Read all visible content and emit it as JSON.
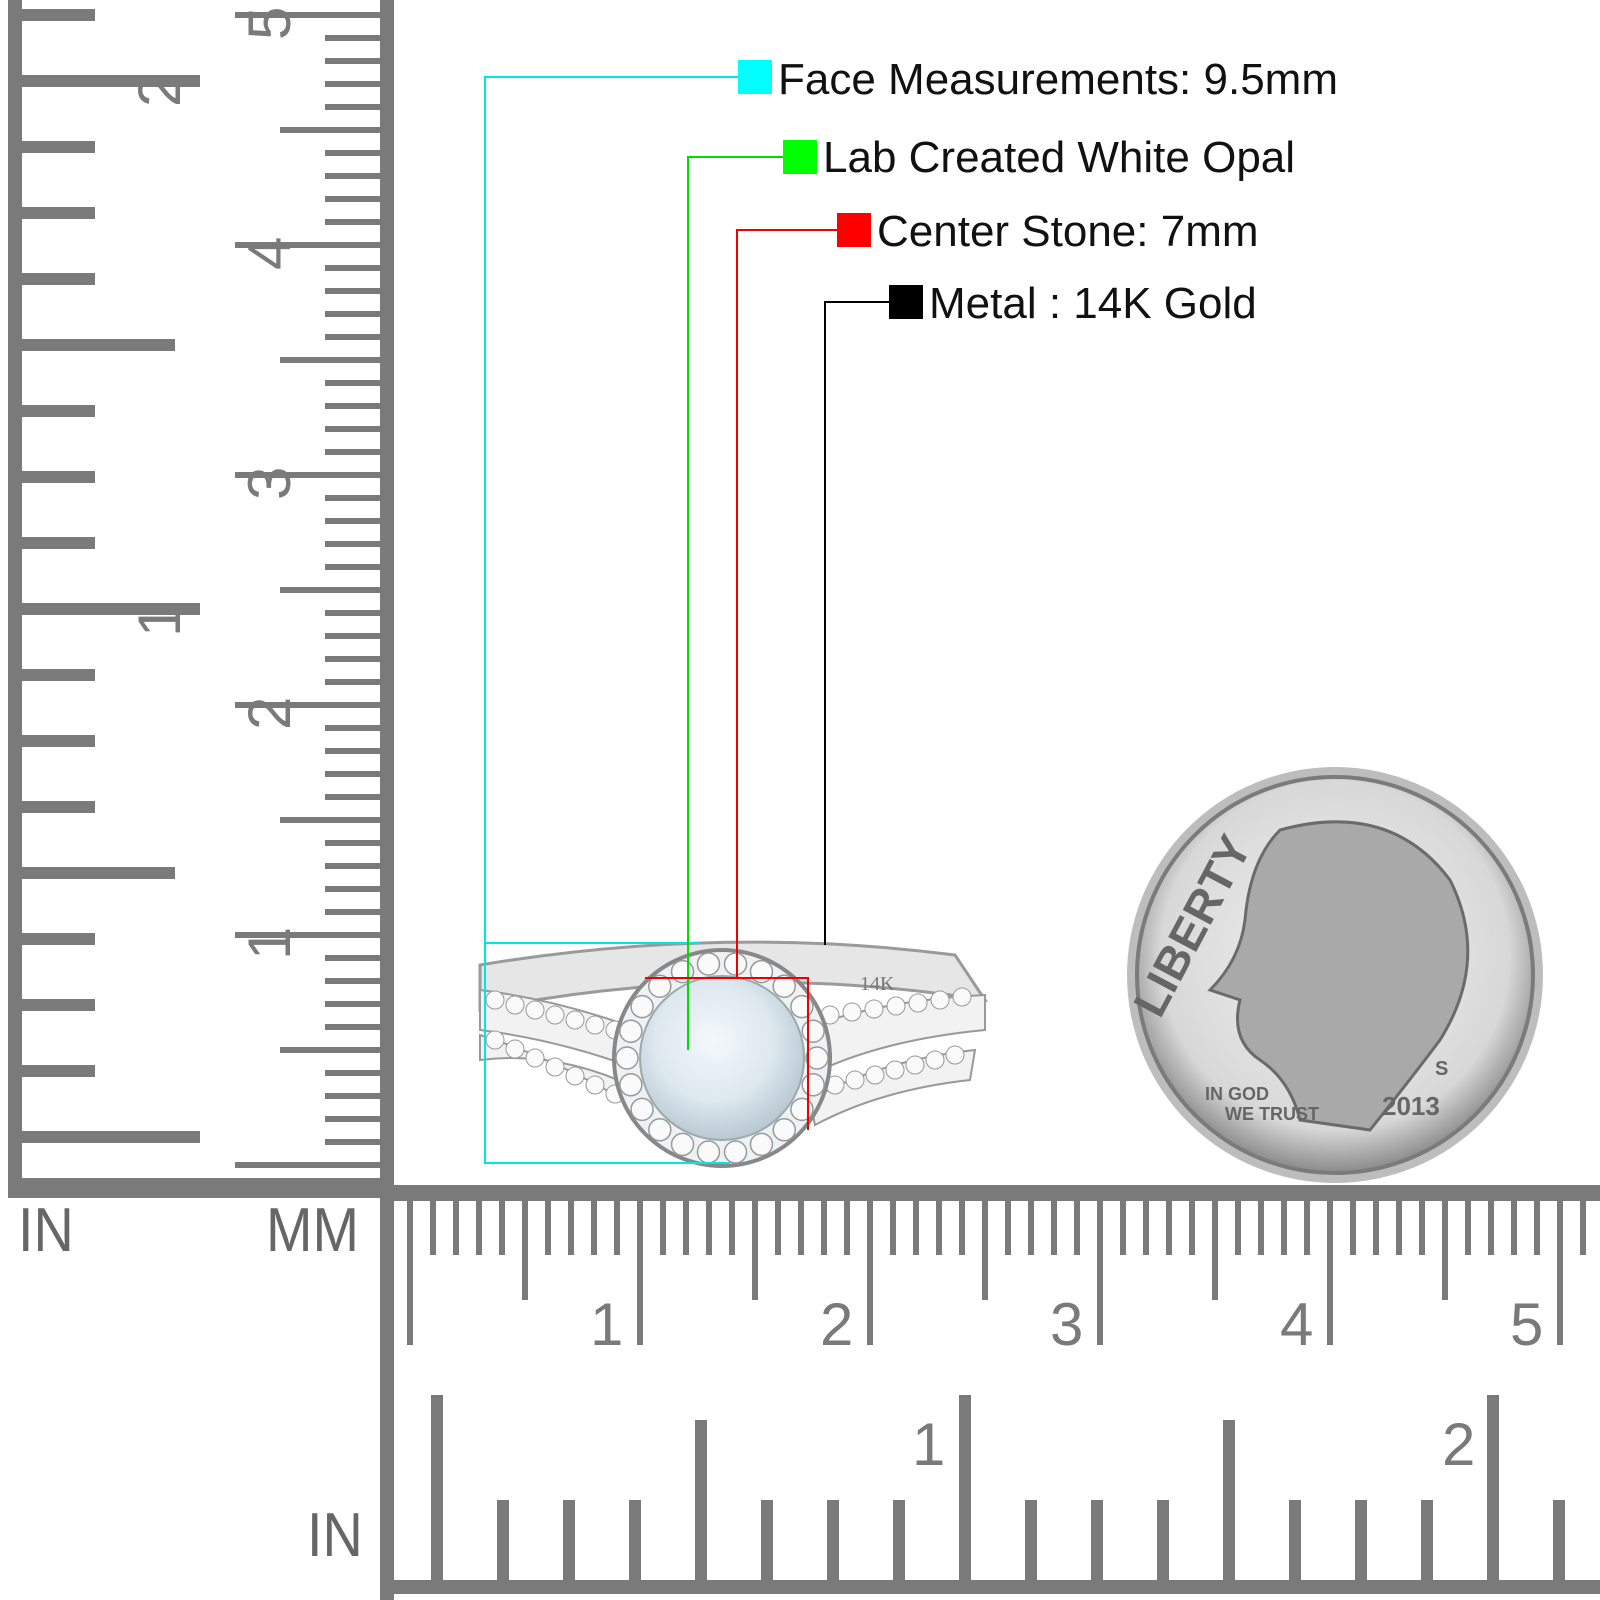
{
  "callouts": [
    {
      "label": "Face Measurements: 9.5mm",
      "color": "#00ffff"
    },
    {
      "label": "Lab Created White Opal",
      "color": "#00ff00"
    },
    {
      "label": "Center Stone: 7mm",
      "color": "#ff0000"
    },
    {
      "label": "Metal : 14K Gold",
      "color": "#000000"
    }
  ],
  "rulers": {
    "vertical_inch_label": "IN",
    "vertical_mm_label": "MM",
    "horizontal_inch_label": "IN",
    "cm_numbers": [
      "1",
      "2",
      "3",
      "4",
      "5"
    ],
    "inch_numbers": [
      "1",
      "2"
    ],
    "color": "#777777"
  },
  "ring": {
    "stamp": "14K"
  },
  "coin": {
    "liberty": "LIBERTY",
    "motto_1": "IN GOD",
    "motto_2": "WE TRUST",
    "year": "2013",
    "mint": "S"
  }
}
